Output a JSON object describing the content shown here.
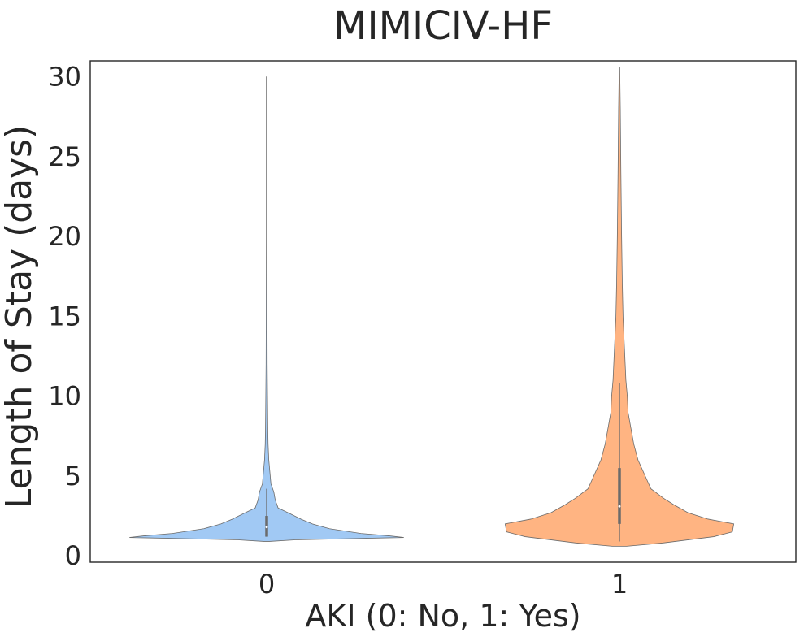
{
  "chart_data": {
    "type": "violin",
    "title": "MIMICIV-HF",
    "xlabel": "AKI (0: No, 1: Yes)",
    "ylabel": "Length of Stay (days)",
    "categories": [
      "0",
      "1"
    ],
    "yticks": [
      "0",
      "5",
      "10",
      "15",
      "20",
      "25",
      "30"
    ],
    "ylim": [
      -0.4,
      31
    ],
    "grid": false,
    "legend": "none",
    "colors": {
      "violin_0": "#a1c9f4",
      "violin_1": "#ffb482",
      "inner_box": "#6b6b6b",
      "axes": "#262626"
    },
    "violins": [
      {
        "category": "0",
        "min": 0.9,
        "max": 30.0,
        "whisker_high": 4.2,
        "q1": 1.2,
        "median": 1.8,
        "q3": 2.5,
        "density_profile": [
          [
            0.9,
            0.02
          ],
          [
            1.0,
            0.2
          ],
          [
            1.15,
            0.96
          ],
          [
            1.25,
            0.86
          ],
          [
            1.4,
            0.66
          ],
          [
            1.7,
            0.44
          ],
          [
            2.0,
            0.32
          ],
          [
            2.3,
            0.24
          ],
          [
            2.7,
            0.15
          ],
          [
            3.0,
            0.08
          ],
          [
            3.5,
            0.06
          ],
          [
            4.0,
            0.05
          ],
          [
            4.5,
            0.03
          ],
          [
            5.0,
            0.025
          ],
          [
            6.0,
            0.015
          ],
          [
            7.0,
            0.01
          ],
          [
            8.0,
            0.008
          ],
          [
            10.0,
            0.006
          ],
          [
            12.0,
            0.004
          ],
          [
            15.0,
            0.003
          ],
          [
            20.0,
            0.002
          ],
          [
            25.0,
            0.0015
          ],
          [
            30.0,
            0.001
          ]
        ]
      },
      {
        "category": "1",
        "min": 0.6,
        "max": 30.6,
        "whisker_high": 10.8,
        "q1": 2.0,
        "median": 3.1,
        "q3": 5.5,
        "density_profile": [
          [
            0.6,
            0.05
          ],
          [
            0.8,
            0.3
          ],
          [
            1.2,
            0.66
          ],
          [
            1.5,
            0.79
          ],
          [
            2.0,
            0.8
          ],
          [
            2.3,
            0.62
          ],
          [
            2.7,
            0.48
          ],
          [
            3.2,
            0.38
          ],
          [
            3.6,
            0.31
          ],
          [
            4.2,
            0.22
          ],
          [
            5.0,
            0.18
          ],
          [
            6.0,
            0.13
          ],
          [
            7.0,
            0.1
          ],
          [
            8.0,
            0.08
          ],
          [
            9.0,
            0.06
          ],
          [
            10.0,
            0.055
          ],
          [
            11.0,
            0.045
          ],
          [
            12.0,
            0.04
          ],
          [
            13.0,
            0.035
          ],
          [
            14.0,
            0.03
          ],
          [
            15.0,
            0.025
          ],
          [
            17.0,
            0.02
          ],
          [
            20.0,
            0.015
          ],
          [
            24.0,
            0.01
          ],
          [
            28.0,
            0.006
          ],
          [
            30.6,
            0.002
          ]
        ]
      }
    ]
  }
}
